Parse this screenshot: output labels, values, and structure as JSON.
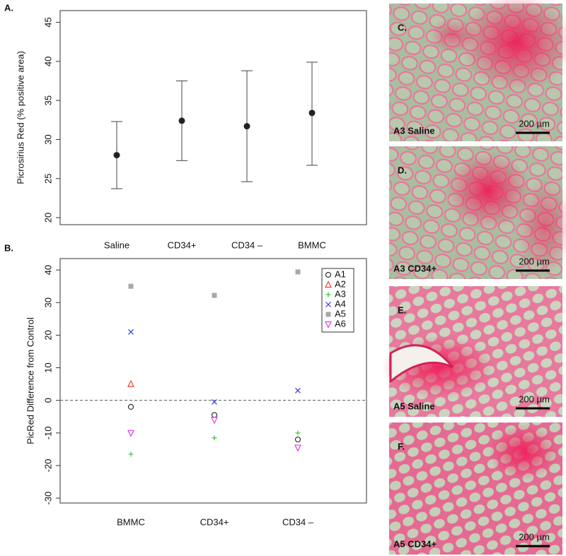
{
  "chart_data": [
    {
      "type": "errorbar",
      "title": "A.",
      "ylabel": "Picrosirius Red (% positive area)",
      "categories": [
        "Saline",
        "CD34+",
        "CD34 –",
        "BMMC"
      ],
      "values": [
        28.0,
        32.4,
        31.7,
        33.4
      ],
      "lower": [
        23.7,
        27.3,
        24.6,
        26.7
      ],
      "upper": [
        32.3,
        37.5,
        38.8,
        39.9
      ],
      "color": "#222222",
      "ylim": [
        19.1,
        46.5
      ],
      "yticks": [
        20,
        25,
        30,
        35,
        40,
        45
      ]
    },
    {
      "type": "scatter",
      "title": "B.",
      "ylabel": "PicRed Difference from Control",
      "categories": [
        "BMMC",
        "CD34+",
        "CD34 –"
      ],
      "series": [
        {
          "name": "A1",
          "color": "#333333",
          "marker": "circle",
          "values": [
            -2,
            -4.5,
            -12
          ]
        },
        {
          "name": "A2",
          "color": "#e8403a",
          "marker": "triangle",
          "values": [
            5,
            null,
            null
          ]
        },
        {
          "name": "A3",
          "color": "#3cc43c",
          "marker": "plus",
          "values": [
            -16.5,
            -11.5,
            -10
          ]
        },
        {
          "name": "A4",
          "color": "#3a3ae0",
          "marker": "cross",
          "values": [
            21,
            -0.5,
            3
          ]
        },
        {
          "name": "A5",
          "color": "#a8a8a8",
          "marker": "square",
          "values": [
            35,
            32.2,
            39.4
          ]
        },
        {
          "name": "A6",
          "color": "#e040e0",
          "marker": "down-triangle",
          "values": [
            -10,
            -6,
            -14.5
          ]
        }
      ],
      "reference_line": 0,
      "legend": "top-right",
      "ylim": [
        -31.5,
        43.5
      ],
      "yticks": [
        -30,
        -20,
        -10,
        0,
        10,
        20,
        30,
        40
      ]
    }
  ],
  "panels": [
    {
      "letter": "C.",
      "caption": "A3 Saline",
      "scale": "200 µm"
    },
    {
      "letter": "D.",
      "caption": "A3 CD34+",
      "scale": "200 µm"
    },
    {
      "letter": "E.",
      "caption": "A5 Saline",
      "scale": "200 µm"
    },
    {
      "letter": "F.",
      "caption": "A5 CD34+",
      "scale": "200 µm"
    }
  ]
}
